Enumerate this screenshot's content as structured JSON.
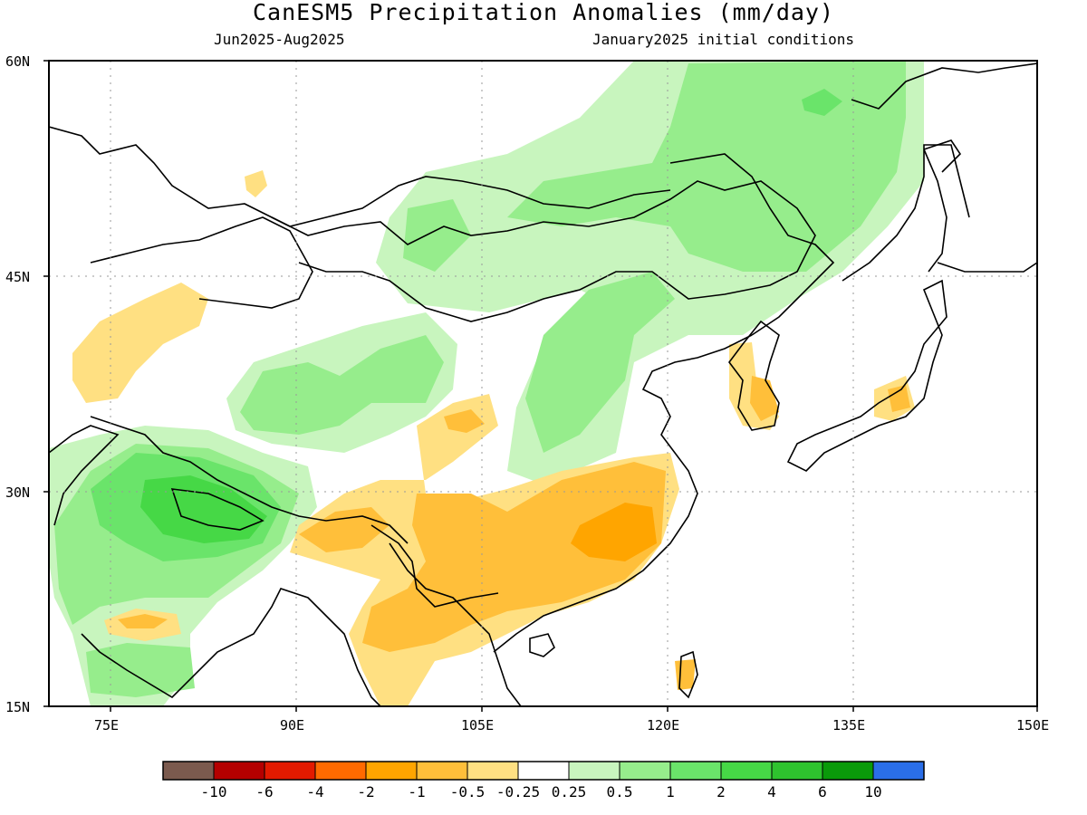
{
  "header": {
    "title": "CanESM5 Precipitation Anomalies (mm/day)",
    "period": "Jun2025-Aug2025",
    "init": "January2025 initial conditions"
  },
  "map": {
    "lon_range": [
      70,
      150
    ],
    "lat_range": [
      15,
      60
    ],
    "lon_ticks": [
      {
        "value": 75,
        "label": "75E"
      },
      {
        "value": 90,
        "label": "90E"
      },
      {
        "value": 105,
        "label": "105E"
      },
      {
        "value": 120,
        "label": "120E"
      },
      {
        "value": 135,
        "label": "135E"
      },
      {
        "value": 150,
        "label": "150E"
      }
    ],
    "lat_ticks": [
      {
        "value": 60,
        "label": "60N"
      },
      {
        "value": 45,
        "label": "45N"
      },
      {
        "value": 30,
        "label": "30N"
      },
      {
        "value": 15,
        "label": "15N"
      }
    ],
    "grid": true
  },
  "colorbar": {
    "colors": [
      "#7b5a4e",
      "#b40000",
      "#e31a00",
      "#ff6a00",
      "#ffa500",
      "#ffbf3a",
      "#ffe082",
      "#ffffff",
      "#c8f5be",
      "#96ed8c",
      "#6ae46a",
      "#46d846",
      "#2ec32e",
      "#0a9a0a",
      "#2a6ee8"
    ],
    "labels": [
      "-10",
      "-6",
      "-4",
      "-2",
      "-1",
      "-0.5",
      "-0.25",
      "0.25",
      "0.5",
      "1",
      "2",
      "4",
      "6",
      "10"
    ]
  },
  "fields": [
    {
      "level": "0.25",
      "color": "#c8f5be",
      "region": "mongolia-north-china"
    },
    {
      "level": "0.5",
      "color": "#96ed8c",
      "region": "mongolia-core"
    },
    {
      "level": "0.5",
      "color": "#96ed8c",
      "region": "north-china-plain"
    },
    {
      "level": "0.25",
      "color": "#c8f5be",
      "region": "tibet-west"
    },
    {
      "level": "0.5",
      "color": "#96ed8c",
      "region": "tibet-west-core"
    },
    {
      "level": "0.25",
      "color": "#c8f5be",
      "region": "north-india"
    },
    {
      "level": "1",
      "color": "#6ae46a",
      "region": "north-india-core"
    },
    {
      "level": "2",
      "color": "#46d846",
      "region": "nepal"
    },
    {
      "level": "-0.25",
      "color": "#ffe082",
      "region": "kazakhstan"
    },
    {
      "level": "-0.25",
      "color": "#ffe082",
      "region": "south-china"
    },
    {
      "level": "-0.5",
      "color": "#ffbf3a",
      "region": "south-china-core"
    },
    {
      "level": "-1",
      "color": "#ffa500",
      "region": "south-china-max"
    },
    {
      "level": "-0.25",
      "color": "#ffe082",
      "region": "korea-japan"
    },
    {
      "level": "-0.5",
      "color": "#ffbf3a",
      "region": "korea"
    }
  ]
}
